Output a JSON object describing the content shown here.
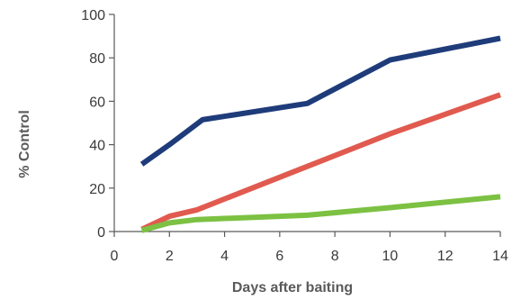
{
  "chart_data": {
    "type": "line",
    "title": "",
    "xlabel": "Days after baiting",
    "ylabel": "% Control",
    "xlim": [
      0,
      14
    ],
    "ylim": [
      0,
      100
    ],
    "xticks": [
      0,
      2,
      4,
      6,
      8,
      10,
      12,
      14
    ],
    "yticks": [
      0,
      20,
      40,
      60,
      80,
      100
    ],
    "grid": false,
    "legend": "none",
    "series": [
      {
        "color": "#1f3c7a",
        "points": [
          [
            1,
            31
          ],
          [
            2,
            40
          ],
          [
            3.2,
            51.5
          ],
          [
            7,
            59
          ],
          [
            10,
            79
          ],
          [
            14,
            89
          ]
        ]
      },
      {
        "color": "#e15a4f",
        "points": [
          [
            1,
            1
          ],
          [
            2,
            7
          ],
          [
            3,
            10
          ],
          [
            7,
            30
          ],
          [
            10,
            45
          ],
          [
            14,
            63
          ]
        ]
      },
      {
        "color": "#7cc142",
        "points": [
          [
            1,
            0.5
          ],
          [
            2,
            4
          ],
          [
            3,
            5.5
          ],
          [
            7,
            7.5
          ],
          [
            10,
            11
          ],
          [
            14,
            16
          ]
        ]
      }
    ]
  }
}
